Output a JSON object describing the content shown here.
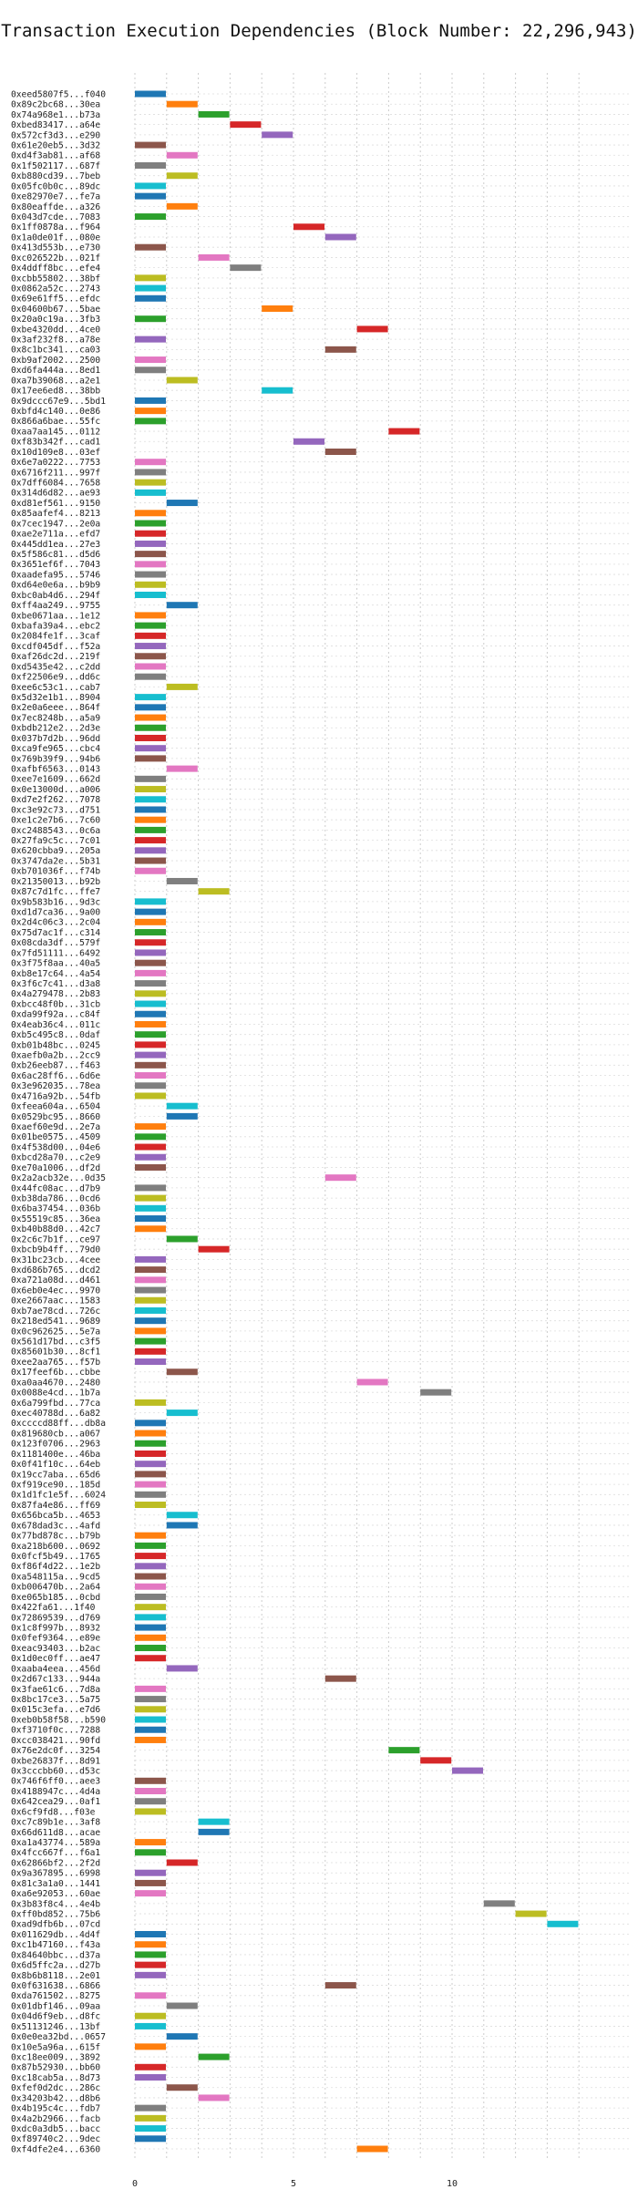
{
  "chart_data": {
    "type": "bar",
    "title": "Transaction Execution Dependencies (Block Number: 22,296,943)",
    "xlabel": "",
    "ylabel": "",
    "xlim": [
      -3.0,
      14.0
    ],
    "xticks": [
      0,
      5,
      10
    ],
    "grid": "vertical-dotted",
    "palette": [
      "#1f77b4",
      "#ff7f0e",
      "#2ca02c",
      "#d62728",
      "#9467bd",
      "#8c564b",
      "#e377c2",
      "#7f7f7f",
      "#bcbd22",
      "#17becf"
    ],
    "rows": [
      [
        "0xeed5807f5...f040",
        0
      ],
      [
        "0x89c2bc68...30ea",
        1
      ],
      [
        "0x74a968e1...b73a",
        2
      ],
      [
        "0xbed83417...a64e",
        3
      ],
      [
        "0x572cf3d3...e290",
        4
      ],
      [
        "0x61e20eb5...3d32",
        0
      ],
      [
        "0xd4f3ab81...af68",
        1
      ],
      [
        "0x1f502117...687f",
        0
      ],
      [
        "0xb880cd39...7beb",
        1
      ],
      [
        "0x05fc0b0c...89dc",
        0
      ],
      [
        "0xe82970e7...fe7a",
        0
      ],
      [
        "0x80eaffde...a326",
        1
      ],
      [
        "0x043d7cde...7083",
        0
      ],
      [
        "0x1ff0878a...f964",
        5
      ],
      [
        "0x1a0de01f...080e",
        6
      ],
      [
        "0x413d553b...e730",
        0
      ],
      [
        "0xc026522b...021f",
        2
      ],
      [
        "0x4ddff8bc...efe4",
        3
      ],
      [
        "0xcbb55802...38bf",
        0
      ],
      [
        "0x0862a52c...2743",
        0
      ],
      [
        "0x69e61ff5...efdc",
        0
      ],
      [
        "0x04600b67...5bae",
        4
      ],
      [
        "0x20a0c19a...3fb3",
        0
      ],
      [
        "0xbe4320dd...4ce0",
        7
      ],
      [
        "0x3af232f8...a78e",
        0
      ],
      [
        "0x8c1bc341...ca03",
        6
      ],
      [
        "0xb9af2002...2500",
        0
      ],
      [
        "0xd6fa444a...8ed1",
        0
      ],
      [
        "0xa7b39068...a2e1",
        1
      ],
      [
        "0x17ee6ed8...38bb",
        4
      ],
      [
        "0x9dccc67e9...5bd1",
        0
      ],
      [
        "0xbfd4c140...0e86",
        0
      ],
      [
        "0x866a6bae...55fc",
        0
      ],
      [
        "0xaa7aa145...0112",
        8
      ],
      [
        "0xf83b342f...cad1",
        5
      ],
      [
        "0x10d109e8...03ef",
        6
      ],
      [
        "0x6e7a0222...7753",
        0
      ],
      [
        "0x6716f211...997f",
        0
      ],
      [
        "0x7dff6084...7658",
        0
      ],
      [
        "0x314d6d82...ae93",
        0
      ],
      [
        "0xd81ef561...9150",
        1
      ],
      [
        "0x85aafef4...8213",
        0
      ],
      [
        "0x7cec1947...2e0a",
        0
      ],
      [
        "0xae2e711a...efd7",
        0
      ],
      [
        "0x445dd1ea...27e3",
        0
      ],
      [
        "0x5f586c81...d5d6",
        0
      ],
      [
        "0x3651ef6f...7043",
        0
      ],
      [
        "0xaadefa95...5746",
        0
      ],
      [
        "0xd64e0e6a...b9b9",
        0
      ],
      [
        "0xbc0ab4d6...294f",
        0
      ],
      [
        "0xff4aa249...9755",
        1
      ],
      [
        "0xbe0671aa...1e12",
        0
      ],
      [
        "0xbafa39a4...ebc2",
        0
      ],
      [
        "0x2084fe1f...3caf",
        0
      ],
      [
        "0xcdf045df...f52a",
        0
      ],
      [
        "0xaf26dc2d...219f",
        0
      ],
      [
        "0xd5435e42...c2dd",
        0
      ],
      [
        "0xf22506e9...dd6c",
        0
      ],
      [
        "0xee6c53c1...cab7",
        1
      ],
      [
        "0x5d32e1b1...8904",
        0
      ],
      [
        "0x2e0a6eee...864f",
        0
      ],
      [
        "0x7ec8248b...a5a9",
        0
      ],
      [
        "0xbdb212e2...2d3e",
        0
      ],
      [
        "0x037b7d2b...96dd",
        0
      ],
      [
        "0xca9fe965...cbc4",
        0
      ],
      [
        "0x769b39f9...94b6",
        0
      ],
      [
        "0xafbf6563...0143",
        1
      ],
      [
        "0xee7e1609...662d",
        0
      ],
      [
        "0x0e13000d...a006",
        0
      ],
      [
        "0xd7e2f262...7078",
        0
      ],
      [
        "0xc3e92c73...d751",
        0
      ],
      [
        "0xe1c2e7b6...7c60",
        0
      ],
      [
        "0xc2488543...0c6a",
        0
      ],
      [
        "0x27fa9c5c...7c01",
        0
      ],
      [
        "0x620cbba9...205a",
        0
      ],
      [
        "0x3747da2e...5b31",
        0
      ],
      [
        "0xb701036f...f74b",
        0
      ],
      [
        "0x21350013...b92b",
        1
      ],
      [
        "0x87c7d1fc...ffe7",
        2
      ],
      [
        "0x9b583b16...9d3c",
        0
      ],
      [
        "0xd1d7ca36...9a00",
        0
      ],
      [
        "0x2d4c06c3...2c04",
        0
      ],
      [
        "0x75d7ac1f...c314",
        0
      ],
      [
        "0x08cda3df...579f",
        0
      ],
      [
        "0x7fd51111...6492",
        0
      ],
      [
        "0x3f75f8aa...40a5",
        0
      ],
      [
        "0xb8e17c64...4a54",
        0
      ],
      [
        "0x3f6c7c41...d3a8",
        0
      ],
      [
        "0x4a279478...2b83",
        0
      ],
      [
        "0xbcc48f0b...31cb",
        0
      ],
      [
        "0xda99f92a...c84f",
        0
      ],
      [
        "0x4eab36c4...011c",
        0
      ],
      [
        "0xb5c495c8...0daf",
        0
      ],
      [
        "0xb01b48bc...0245",
        0
      ],
      [
        "0xaefb0a2b...2cc9",
        0
      ],
      [
        "0xb26eeb87...f463",
        0
      ],
      [
        "0x6ac28ff6...6d6e",
        0
      ],
      [
        "0x3e962035...78ea",
        0
      ],
      [
        "0x4716a92b...54fb",
        0
      ],
      [
        "0xfeea604a...6504",
        1
      ],
      [
        "0x0529bc95...8660",
        1
      ],
      [
        "0xaef60e9d...2e7a",
        0
      ],
      [
        "0x01be0575...4509",
        0
      ],
      [
        "0x4f538d00...04e6",
        0
      ],
      [
        "0xbcd28a70...c2e9",
        0
      ],
      [
        "0xe70a1006...df2d",
        0
      ],
      [
        "0x2a2acb32e...0d35",
        6
      ],
      [
        "0x44fc08ac...d7b9",
        0
      ],
      [
        "0xb38da786...0cd6",
        0
      ],
      [
        "0x6ba37454...036b",
        0
      ],
      [
        "0x55519c85...36ea",
        0
      ],
      [
        "0xb40b88d0...42c7",
        0
      ],
      [
        "0x2c6c7b1f...ce97",
        1
      ],
      [
        "0xbcb9b4ff...79d0",
        2
      ],
      [
        "0x31bc23cb...4cee",
        0
      ],
      [
        "0xd686b765...dcd2",
        0
      ],
      [
        "0xa721a08d...d461",
        0
      ],
      [
        "0x6eb0e4ec...9970",
        0
      ],
      [
        "0xe2667aac...1583",
        0
      ],
      [
        "0xb7ae78cd...726c",
        0
      ],
      [
        "0x218ed541...9689",
        0
      ],
      [
        "0x0c962625...5e7a",
        0
      ],
      [
        "0x561d17bd...c3f5",
        0
      ],
      [
        "0x85601b30...8cf1",
        0
      ],
      [
        "0xee2aa765...f57b",
        0
      ],
      [
        "0x17feef6b...cbbe",
        1
      ],
      [
        "0xa0aa4670...2480",
        7
      ],
      [
        "0x0088e4cd...1b7a",
        9
      ],
      [
        "0x6a799fbd...77ca",
        0
      ],
      [
        "0xec40788d...6a82",
        1
      ],
      [
        "0xccccd88ff...db8a",
        0
      ],
      [
        "0x819680cb...a067",
        0
      ],
      [
        "0x123f0706...2963",
        0
      ],
      [
        "0x1181400e...46ba",
        0
      ],
      [
        "0x0f41f10c...64eb",
        0
      ],
      [
        "0x19cc7aba...65d6",
        0
      ],
      [
        "0xf919ce90...185d",
        0
      ],
      [
        "0x1d1fc1e5f...6024",
        0
      ],
      [
        "0x87fa4e86...ff69",
        0
      ],
      [
        "0x656bca5b...4653",
        1
      ],
      [
        "0x678dad3c...4afd",
        1
      ],
      [
        "0x77bd878c...b79b",
        0
      ],
      [
        "0xa218b600...0692",
        0
      ],
      [
        "0x0fcf5b49...1765",
        0
      ],
      [
        "0xf86f4d22...1e2b",
        0
      ],
      [
        "0xa548115a...9cd5",
        0
      ],
      [
        "0xb006470b...2a64",
        0
      ],
      [
        "0xe065b185...0cbd",
        0
      ],
      [
        "0x422fa61...1f40",
        0
      ],
      [
        "0x72869539...d769",
        0
      ],
      [
        "0x1c8f997b...8932",
        0
      ],
      [
        "0x0fef9364...e89e",
        0
      ],
      [
        "0xeac93403...b2ac",
        0
      ],
      [
        "0x1d0ec0ff...ae47",
        0
      ],
      [
        "0xaaba4eea...456d",
        1
      ],
      [
        "0x2d67c133...944a",
        6
      ],
      [
        "0x3fae61c6...7d8a",
        0
      ],
      [
        "0x8bc17ce3...5a75",
        0
      ],
      [
        "0x015c3efa...e7d6",
        0
      ],
      [
        "0xeb0b58f58...b590",
        0
      ],
      [
        "0xf3710f0c...7288",
        0
      ],
      [
        "0xcc038421...90fd",
        0
      ],
      [
        "0x76e2dc0f...3254",
        8
      ],
      [
        "0xbe26837f...8d91",
        9
      ],
      [
        "0x3cccbb60...d53c",
        10
      ],
      [
        "0x746f6ff0...aee3",
        0
      ],
      [
        "0x4188947c...4d4a",
        0
      ],
      [
        "0x642cea29...0af1",
        0
      ],
      [
        "0x6cf9fd8...f03e",
        0
      ],
      [
        "0xc7c89b1e...3af8",
        2
      ],
      [
        "0x66d611d8...acae",
        2
      ],
      [
        "0xa1a43774...589a",
        0
      ],
      [
        "0x4fcc667f...f6a1",
        0
      ],
      [
        "0x62866bf2...2f2d",
        1
      ],
      [
        "0x9a367895...6998",
        0
      ],
      [
        "0x81c3a1a0...1441",
        0
      ],
      [
        "0xa6e92053...60ae",
        0
      ],
      [
        "0x3b83f8c4...4e4b",
        11
      ],
      [
        "0xff0bd852...75b6",
        12
      ],
      [
        "0xad9dfb6b...07cd",
        13
      ],
      [
        "0x011629db...4d4f",
        0
      ],
      [
        "0xc1b47160...f43a",
        0
      ],
      [
        "0x84640bbc...d37a",
        0
      ],
      [
        "0x6d5ffc2a...d27b",
        0
      ],
      [
        "0x8b6b8118...2e01",
        0
      ],
      [
        "0x0f631638...6866",
        6
      ],
      [
        "0xda761502...8275",
        0
      ],
      [
        "0x01dbf146...09aa",
        1
      ],
      [
        "0x04d6f9eb...d8fc",
        0
      ],
      [
        "0x51131246...13bf",
        0
      ],
      [
        "0x0e0ea32bd...0657",
        1
      ],
      [
        "0x10e5a96a...615f",
        0
      ],
      [
        "0xc18ee009...3892",
        2
      ],
      [
        "0x87b52930...bb60",
        0
      ],
      [
        "0xc18cab5a...8d73",
        0
      ],
      [
        "0xfef0d2dc...286c",
        1
      ],
      [
        "0x34203b42...d8b6",
        2
      ],
      [
        "0x4b195c4c...fdb7",
        0
      ],
      [
        "0x4a2b2966...facb",
        0
      ],
      [
        "0xdc0a3db5...bacc",
        0
      ],
      [
        "0xf89740c2...9dec",
        0
      ],
      [
        "0xf4dfe2e4...6360",
        7
      ]
    ]
  }
}
